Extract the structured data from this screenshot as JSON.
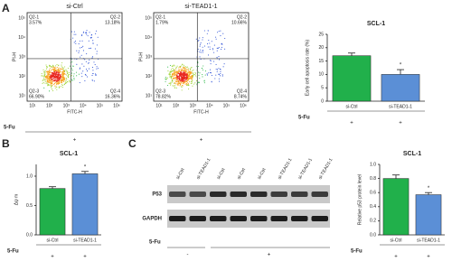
{
  "panels": [
    "A",
    "B",
    "C"
  ],
  "flow_plots": [
    {
      "title": "si-Ctrl",
      "xlabel": "FITC-H",
      "ylabel": "PI-H",
      "xticks": [
        "10¹",
        "10²",
        "10³",
        "10⁴",
        "10⁵",
        "10⁶"
      ],
      "yticks": [
        "10¹",
        "10²",
        "10³",
        "10⁴",
        "10⁵"
      ],
      "quadrants": [
        {
          "name": "Q2-1",
          "value": "3.57%"
        },
        {
          "name": "Q2-2",
          "value": "13.18%"
        },
        {
          "name": "Q2-3",
          "value": "66.90%"
        },
        {
          "name": "Q2-4",
          "value": "16.36%"
        }
      ]
    },
    {
      "title": "si-TEAD1-1",
      "xlabel": "FITC-H",
      "ylabel": "PI-H",
      "xticks": [
        "10¹",
        "10²",
        "10³",
        "10⁴",
        "10⁵",
        "10⁶"
      ],
      "yticks": [
        "10¹",
        "10²",
        "10³",
        "10⁴",
        "10⁵"
      ],
      "quadrants": [
        {
          "name": "Q2-1",
          "value": "1.79%"
        },
        {
          "name": "Q2-2",
          "value": "10.66%"
        },
        {
          "name": "Q2-3",
          "value": "78.82%"
        },
        {
          "name": "Q2-4",
          "value": "8.74%"
        }
      ]
    }
  ],
  "flow_treatment": {
    "label": "5-Fu",
    "values": [
      "+",
      "+"
    ]
  },
  "western_blot": {
    "lanes": [
      "si-Ctrl",
      "si-TEAD1-1",
      "si-Ctrl",
      "si-Ctrl",
      "si-Ctrl",
      "si-TEAD1-1",
      "si-TEAD1-1",
      "si-TEAD1-1"
    ],
    "rows": [
      "P53",
      "GAPDH"
    ],
    "treatment_label": "5-Fu",
    "treatment": [
      "-",
      "+"
    ]
  },
  "chart_data": [
    {
      "type": "bar",
      "title": "SCL-1",
      "ylabel": "Early cell apoptosis rate (%)",
      "categories": [
        "si-Ctrl",
        "si-TEAD1-1"
      ],
      "values": [
        17,
        10
      ],
      "errors": [
        1,
        1.8
      ],
      "colors": [
        "#21b04b",
        "#5b8fd6"
      ],
      "star_labels": [
        null,
        "*"
      ],
      "ylim": [
        0,
        25
      ],
      "yticks": [
        0,
        5,
        10,
        15,
        20,
        25
      ],
      "treatment_label": "5-Fu",
      "treatment": [
        "+",
        "+"
      ]
    },
    {
      "type": "bar",
      "title": "SCL-1",
      "ylabel": "Δψ m",
      "categories": [
        "si-Ctrl",
        "si-TEAD1-1"
      ],
      "values": [
        0.79,
        1.04
      ],
      "errors": [
        0.03,
        0.04
      ],
      "colors": [
        "#21b04b",
        "#5b8fd6"
      ],
      "star_labels": [
        null,
        "*"
      ],
      "ylim": [
        0,
        1.2
      ],
      "yticks": [
        {
          "value": 0,
          "label": "0.0"
        },
        {
          "value": 0.5,
          "label": "0.5"
        },
        {
          "value": 1,
          "label": "1.0"
        }
      ],
      "treatment_label": "5-Fu",
      "treatment": [
        "+",
        "+"
      ]
    },
    {
      "type": "bar",
      "title": "SCL-1",
      "ylabel": "Relative p53 protein level",
      "categories": [
        "si-Ctrl",
        "si-TEAD1-1"
      ],
      "values": [
        0.8,
        0.57
      ],
      "errors": [
        0.05,
        0.03
      ],
      "colors": [
        "#21b04b",
        "#5b8fd6"
      ],
      "star_labels": [
        null,
        "*"
      ],
      "ylim": [
        0,
        1
      ],
      "yticks": [
        {
          "value": 0,
          "label": "0.0"
        },
        0.2,
        0.4,
        0.6,
        0.8,
        {
          "value": 1,
          "label": "1.0"
        }
      ],
      "treatment_label": "5-Fu",
      "treatment": [
        "+",
        "+"
      ]
    }
  ]
}
